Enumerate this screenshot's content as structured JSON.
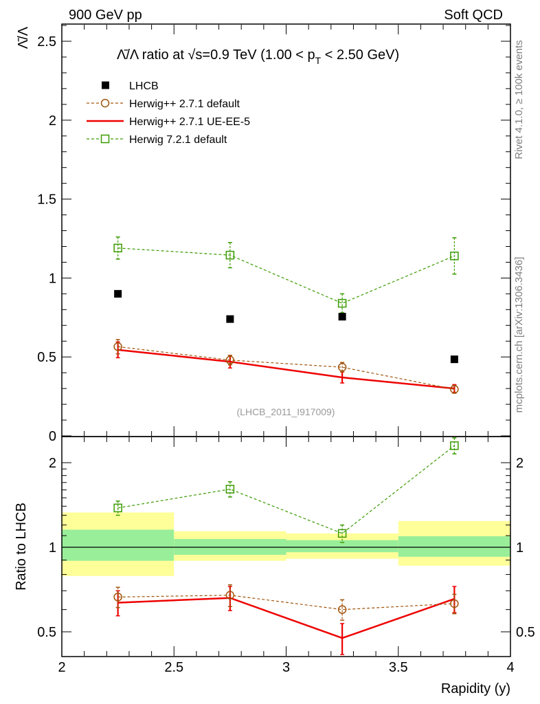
{
  "header": {
    "left": "900 GeV pp",
    "right": "Soft QCD"
  },
  "side_labels": {
    "rivet": "Rivet 4.1.0, ≥ 100k events",
    "mcplots": "mcplots.cern.ch [arXiv:1306.3436]"
  },
  "analysis_tag": "(LHCB_2011_I917009)",
  "colors": {
    "data": "#000000",
    "herwigpp_default": "#a0530a",
    "herwigpp_ueee5": "#ee0000",
    "herwig7": "#3a9a00",
    "band_inner": "#99ee99",
    "band_outer": "#ffff99"
  },
  "chart_data": [
    {
      "type": "scatter",
      "title": "Λ̄/Λ ratio at √s=0.9 TeV (1.00 < pT < 2.50 GeV)",
      "title_parts": {
        "ratio": "Λ̄/Λ ratio at √s=0.9 TeV (1.00 < p",
        "sub": "T",
        "end": " < 2.50 GeV)"
      },
      "ylabel": "Λ̄/Λ",
      "xlabel": "",
      "xlim": [
        2,
        4
      ],
      "ylim": [
        0,
        2.6
      ],
      "yticks": [
        "0",
        "0.5",
        "1",
        "1.5",
        "2",
        "2.5"
      ],
      "x": [
        2.25,
        2.75,
        3.25,
        3.75
      ],
      "series": [
        {
          "name": "LHCB",
          "key": "data",
          "values": [
            0.9,
            0.74,
            0.755,
            0.485
          ]
        },
        {
          "name": "Herwig++ 2.7.1 default",
          "key": "herwigpp_default",
          "values": [
            0.565,
            0.48,
            0.435,
            0.295
          ],
          "errors": [
            0.045,
            0.03,
            0.03,
            0.025
          ]
        },
        {
          "name": "Herwig++ 2.7.1 UE-EE-5",
          "key": "herwigpp_ueee5",
          "values": [
            0.545,
            0.47,
            0.37,
            0.3
          ],
          "errors": [
            0.05,
            0.04,
            0.035,
            0.025
          ]
        },
        {
          "name": "Herwig 7.2.1 default",
          "key": "herwig7",
          "values": [
            1.19,
            1.145,
            0.84,
            1.14
          ],
          "errors": [
            0.07,
            0.08,
            0.06,
            0.115
          ]
        }
      ]
    },
    {
      "type": "scatter",
      "title": "",
      "ylabel": "Ratio to LHCB",
      "xlabel": "Rapidity (y)",
      "xlim": [
        2,
        4
      ],
      "ylim": [
        0.42,
        2.35
      ],
      "yticks": [
        "0.5",
        "1",
        "2"
      ],
      "xticks": [
        "2",
        "2.5",
        "3",
        "3.5",
        "4"
      ],
      "x": [
        2.25,
        2.75,
        3.25,
        3.75
      ],
      "bins": [
        [
          2.0,
          2.5
        ],
        [
          2.5,
          3.0
        ],
        [
          3.0,
          3.5
        ],
        [
          3.5,
          4.0
        ]
      ],
      "band_inner": [
        [
          0.895,
          1.155
        ],
        [
          0.94,
          1.07
        ],
        [
          0.96,
          1.06
        ],
        [
          0.925,
          1.095
        ]
      ],
      "band_outer": [
        [
          0.79,
          1.33
        ],
        [
          0.895,
          1.14
        ],
        [
          0.91,
          1.12
        ],
        [
          0.86,
          1.24
        ]
      ],
      "series": [
        {
          "name": "Herwig++ 2.7.1 default",
          "key": "herwigpp_default",
          "values": [
            0.665,
            0.675,
            0.6,
            0.63
          ],
          "errors": [
            0.055,
            0.06,
            0.05,
            0.05
          ]
        },
        {
          "name": "Herwig++ 2.7.1 UE-EE-5",
          "key": "herwigpp_ueee5",
          "values": [
            0.635,
            0.66,
            0.475,
            0.655
          ],
          "errors": [
            0.065,
            0.065,
            0.06,
            0.07
          ]
        },
        {
          "name": "Herwig 7.2.1 default",
          "key": "herwig7",
          "values": [
            1.38,
            1.61,
            1.12,
            2.3
          ],
          "errors": [
            0.08,
            0.1,
            0.08,
            0.15
          ]
        }
      ]
    }
  ]
}
